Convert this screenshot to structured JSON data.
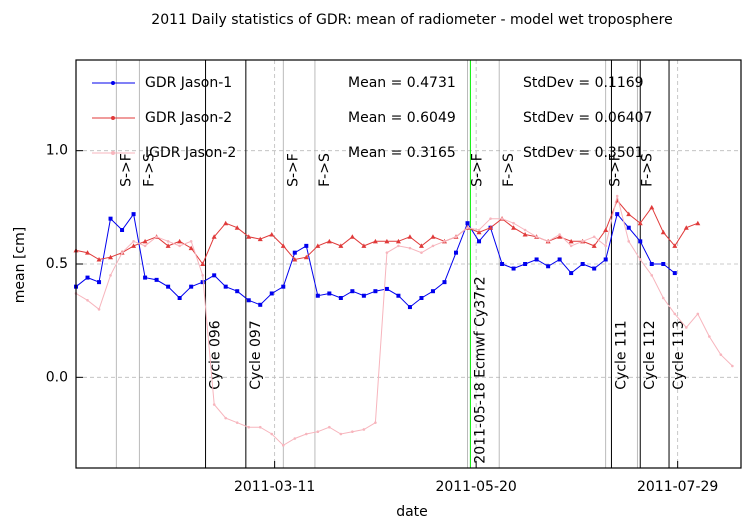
{
  "chart_data": {
    "type": "line",
    "title": "2011 Daily statistics of GDR: mean of radiometer - model wet troposphere",
    "xlabel": "date",
    "ylabel": "mean [cm]",
    "x": [
      "2011-01-01",
      "2011-01-05",
      "2011-01-09",
      "2011-01-13",
      "2011-01-17",
      "2011-01-21",
      "2011-01-25",
      "2011-01-29",
      "2011-02-02",
      "2011-02-06",
      "2011-02-10",
      "2011-02-14",
      "2011-02-18",
      "2011-02-22",
      "2011-02-26",
      "2011-03-02",
      "2011-03-06",
      "2011-03-10",
      "2011-03-14",
      "2011-03-18",
      "2011-03-22",
      "2011-03-26",
      "2011-03-30",
      "2011-04-03",
      "2011-04-07",
      "2011-04-11",
      "2011-04-15",
      "2011-04-19",
      "2011-04-23",
      "2011-04-27",
      "2011-05-01",
      "2011-05-05",
      "2011-05-09",
      "2011-05-13",
      "2011-05-17",
      "2011-05-21",
      "2011-05-25",
      "2011-05-29",
      "2011-06-02",
      "2011-06-06",
      "2011-06-10",
      "2011-06-14",
      "2011-06-18",
      "2011-06-22",
      "2011-06-26",
      "2011-06-30",
      "2011-07-04",
      "2011-07-08",
      "2011-07-12",
      "2011-07-16",
      "2011-07-20",
      "2011-07-24",
      "2011-07-28",
      "2011-08-01",
      "2011-08-05",
      "2011-08-09",
      "2011-08-13",
      "2011-08-17"
    ],
    "xlim": [
      "2011-01-01",
      "2011-08-20"
    ],
    "xticks": [
      "2011-03-11",
      "2011-05-20",
      "2011-07-29"
    ],
    "ylim": [
      -0.4,
      1.4
    ],
    "yticks": [
      {
        "value": 0,
        "label": "0.0"
      },
      0.5,
      {
        "value": 1,
        "label": "1.0"
      }
    ],
    "grid": true,
    "series": [
      {
        "name": "GDR Jason-1",
        "color": "#0000ee",
        "marker": "square",
        "stats": [
          "Mean = 0.4731",
          "StdDev = 0.1169"
        ],
        "values": [
          0.4,
          0.44,
          0.42,
          0.7,
          0.65,
          0.72,
          0.44,
          0.43,
          0.4,
          0.35,
          0.4,
          0.42,
          0.45,
          0.4,
          0.38,
          0.34,
          0.32,
          0.37,
          0.4,
          0.55,
          0.58,
          0.36,
          0.37,
          0.35,
          0.38,
          0.36,
          0.38,
          0.39,
          0.36,
          0.31,
          0.35,
          0.38,
          0.42,
          0.55,
          0.68,
          0.6,
          0.66,
          0.5,
          0.48,
          0.5,
          0.52,
          0.49,
          0.52,
          0.46,
          0.5,
          0.48,
          0.52,
          0.72,
          0.66,
          0.6,
          0.5,
          0.5,
          0.46,
          null,
          null,
          null,
          null,
          null
        ]
      },
      {
        "name": "GDR Jason-2",
        "color": "#e03a3a",
        "marker": "triangle",
        "stats": [
          "Mean = 0.6049",
          "StdDev = 0.06407"
        ],
        "values": [
          0.56,
          0.55,
          0.52,
          0.53,
          0.55,
          0.58,
          0.6,
          0.62,
          0.58,
          0.6,
          0.57,
          0.5,
          0.62,
          0.68,
          0.66,
          0.62,
          0.61,
          0.63,
          0.58,
          0.52,
          0.53,
          0.58,
          0.6,
          0.58,
          0.62,
          0.58,
          0.6,
          0.6,
          0.6,
          0.62,
          0.58,
          0.62,
          0.6,
          0.62,
          0.66,
          0.64,
          0.66,
          0.7,
          0.66,
          0.63,
          0.62,
          0.6,
          0.62,
          0.6,
          0.6,
          0.58,
          0.65,
          0.78,
          0.72,
          0.68,
          0.75,
          0.64,
          0.58,
          0.66,
          0.68,
          null,
          null,
          null
        ]
      },
      {
        "name": "IGDR Jason-2",
        "color": "#f7b5bd",
        "marker": "dot",
        "stats": [
          "Mean = 0.3165",
          "StdDev = 0.3501"
        ],
        "values": [
          0.37,
          0.34,
          0.3,
          0.45,
          0.55,
          0.6,
          0.58,
          0.62,
          0.6,
          0.58,
          0.6,
          0.45,
          -0.12,
          -0.18,
          -0.2,
          -0.22,
          -0.22,
          -0.25,
          -0.3,
          -0.27,
          -0.25,
          -0.24,
          -0.22,
          -0.25,
          -0.24,
          -0.23,
          -0.2,
          0.55,
          0.58,
          0.57,
          0.55,
          0.58,
          0.6,
          0.62,
          0.66,
          0.65,
          0.7,
          0.7,
          0.68,
          0.65,
          0.62,
          0.6,
          0.63,
          0.58,
          0.6,
          0.62,
          0.58,
          0.8,
          0.6,
          0.52,
          0.45,
          0.35,
          0.28,
          0.22,
          0.28,
          0.18,
          0.1,
          0.05
        ]
      }
    ],
    "annotations": [
      {
        "x": "2011-01-15",
        "text": "S->F",
        "color": "#aaaaaa"
      },
      {
        "x": "2011-01-23",
        "text": "F->S",
        "color": "#aaaaaa"
      },
      {
        "x": "2011-02-15",
        "text": "Cycle 096",
        "color": "#000000"
      },
      {
        "x": "2011-03-01",
        "text": "Cycle 097",
        "color": "#000000"
      },
      {
        "x": "2011-03-14",
        "text": "S->F",
        "color": "#aaaaaa"
      },
      {
        "x": "2011-03-25",
        "text": "F->S",
        "color": "#aaaaaa"
      },
      {
        "x": "2011-05-17",
        "text": "S->F",
        "color": "#aaaaaa"
      },
      {
        "x": "2011-05-18",
        "text": "2011-05-18 Ecmwf Cy37r2",
        "color": "#00ee00"
      },
      {
        "x": "2011-05-28",
        "text": "F->S",
        "color": "#aaaaaa"
      },
      {
        "x": "2011-07-04",
        "text": "S->F",
        "color": "#aaaaaa"
      },
      {
        "x": "2011-07-06",
        "text": "Cycle 111",
        "color": "#000000"
      },
      {
        "x": "2011-07-15",
        "text": "F->S",
        "color": "#aaaaaa"
      },
      {
        "x": "2011-07-16",
        "text": "Cycle 112",
        "color": "#000000"
      },
      {
        "x": "2011-07-26",
        "text": "Cycle 113",
        "color": "#000000"
      }
    ]
  }
}
